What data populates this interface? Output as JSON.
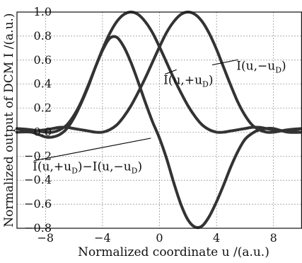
{
  "chart_data": {
    "type": "line",
    "xlabel": "Normalized coordinate  u /(a.u.)",
    "ylabel": "Normalized output of DCM I /(a.u.)",
    "xlim": [
      -10,
      10
    ],
    "ylim": [
      -0.8,
      1.0
    ],
    "xticks": [
      -8,
      -4,
      0,
      4,
      8
    ],
    "yticks": [
      -0.8,
      -0.6,
      -0.4,
      -0.2,
      0.0,
      0.2,
      0.4,
      0.6,
      0.8,
      1.0
    ],
    "xtick_labels": [
      "−8",
      "−4",
      "0",
      "4",
      "8"
    ],
    "ytick_labels": [
      "−0.8",
      "−0.6",
      "−0.4",
      "−0.2",
      "0.0",
      "0.2",
      "0.4",
      "0.6",
      "0.8",
      "1.0"
    ],
    "grid": true,
    "series": [
      {
        "name": "I(u,+uD)",
        "x": [
          -10,
          -9,
          -8,
          -7.5,
          -7,
          -6.5,
          -6,
          -5.5,
          -5,
          -4.5,
          -4,
          -3.5,
          -3,
          -2.5,
          -2,
          -1.5,
          -1,
          -0.5,
          0,
          0.5,
          1,
          1.5,
          2,
          2.5,
          3,
          3.5,
          4,
          4.5,
          5,
          5.5,
          6,
          6.5,
          7,
          7.5,
          8,
          9,
          10
        ],
        "y": [
          0.03,
          0.02,
          0.0,
          0.0,
          0.02,
          0.06,
          0.14,
          0.25,
          0.39,
          0.54,
          0.69,
          0.82,
          0.92,
          0.98,
          1.0,
          0.98,
          0.92,
          0.83,
          0.71,
          0.58,
          0.45,
          0.33,
          0.22,
          0.13,
          0.06,
          0.02,
          0.0,
          0.0,
          0.01,
          0.02,
          0.03,
          0.04,
          0.04,
          0.03,
          0.02,
          0.01,
          0.03
        ]
      },
      {
        "name": "I(u,−uD)",
        "x": [
          -10,
          -9,
          -8,
          -7.5,
          -7,
          -6.5,
          -6,
          -5.5,
          -5,
          -4.5,
          -4,
          -3.5,
          -3,
          -2.5,
          -2,
          -1.5,
          -1,
          -0.5,
          0,
          0.5,
          1,
          1.5,
          2,
          2.5,
          3,
          3.5,
          4,
          4.5,
          5,
          5.5,
          6,
          6.5,
          7,
          7.5,
          8,
          9,
          10
        ],
        "y": [
          0.03,
          0.01,
          0.02,
          0.03,
          0.04,
          0.04,
          0.03,
          0.02,
          0.01,
          0.0,
          0.0,
          0.02,
          0.06,
          0.13,
          0.22,
          0.33,
          0.45,
          0.58,
          0.71,
          0.83,
          0.92,
          0.98,
          1.0,
          0.98,
          0.92,
          0.82,
          0.69,
          0.54,
          0.39,
          0.25,
          0.14,
          0.06,
          0.02,
          0.0,
          0.0,
          0.02,
          0.03
        ]
      },
      {
        "name": "I(u,+uD)−I(u,−uD)",
        "x": [
          -10,
          -9,
          -8,
          -7.5,
          -7,
          -6.5,
          -6,
          -5.5,
          -5,
          -4.5,
          -4,
          -3.5,
          -3,
          -2.5,
          -2,
          -1.5,
          -1,
          -0.5,
          0,
          0.5,
          1,
          1.5,
          2,
          2.5,
          3,
          3.5,
          4,
          4.5,
          5,
          5.5,
          6,
          6.5,
          7,
          7.5,
          8,
          9,
          10
        ],
        "y": [
          0.0,
          0.0,
          -0.04,
          -0.04,
          -0.02,
          0.03,
          0.12,
          0.24,
          0.38,
          0.54,
          0.68,
          0.78,
          0.79,
          0.71,
          0.58,
          0.42,
          0.25,
          0.09,
          -0.05,
          -0.22,
          -0.42,
          -0.6,
          -0.73,
          -0.79,
          -0.78,
          -0.7,
          -0.58,
          -0.44,
          -0.29,
          -0.16,
          -0.06,
          -0.01,
          0.02,
          0.03,
          0.03,
          0.0,
          0.0
        ]
      }
    ],
    "annotations": [
      {
        "label": "I(u,+uD)",
        "base": "I(u,+u",
        "sub": "D",
        "close": ")",
        "at": [
          0.28,
          0.4
        ],
        "anchor": "left",
        "arrow_to": [
          1.2,
          0.52
        ]
      },
      {
        "label": "I(u,−uD)",
        "base": "I(u,−u",
        "sub": "D",
        "close": ")",
        "at": [
          5.4,
          0.52
        ],
        "anchor": "left",
        "arrow_to": [
          3.7,
          0.56
        ]
      },
      {
        "label": "I(u,+uD)−I(u,−uD)",
        "base": "I(u,+u",
        "sub": "D",
        "mid": ")−I(u,−u",
        "sub2": "D",
        "close": ")",
        "at": [
          -8.9,
          -0.32
        ],
        "anchor": "left",
        "arrow_to": [
          -0.6,
          -0.05
        ]
      }
    ]
  }
}
